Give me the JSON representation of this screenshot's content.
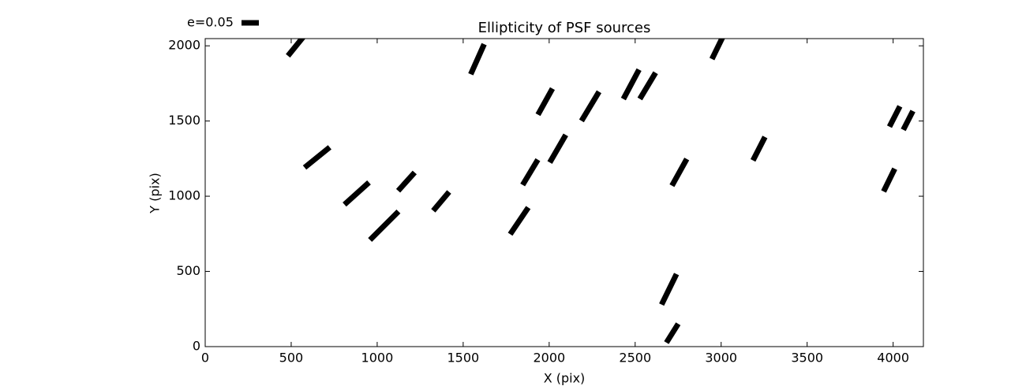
{
  "chart_data": {
    "type": "quiver",
    "title": "Ellipticity of PSF sources",
    "x_label": "X (pix)",
    "y_label": "Y (pix)",
    "xlim": [
      0,
      4176
    ],
    "ylim": [
      0,
      2048
    ],
    "xticks": [
      0,
      500,
      1000,
      1500,
      2000,
      2500,
      3000,
      3500,
      4000
    ],
    "yticks": [
      0,
      500,
      1000,
      1500,
      2000
    ],
    "legend": {
      "label": "e=0.05",
      "value": 0.05,
      "position": "upper left"
    },
    "whiskers": {
      "color": "#000000",
      "x": [
        532,
        1583,
        2982,
        651,
        881,
        1041,
        1170,
        1372,
        1977,
        1890,
        2050,
        1826,
        2239,
        2477,
        2573,
        2757,
        3220,
        4009,
        4087,
        3977,
        2697,
        2716
      ],
      "y": [
        2005,
        1911,
        1995,
        1258,
        1018,
        804,
        1097,
        966,
        1629,
        1159,
        1316,
        836,
        1598,
        1744,
        1734,
        1159,
        1316,
        1530,
        1504,
        1107,
        381,
        89
      ],
      "e": [
        0.08,
        0.095,
        0.08,
        0.093,
        0.095,
        0.116,
        0.071,
        0.071,
        0.086,
        0.085,
        0.092,
        0.093,
        0.098,
        0.096,
        0.088,
        0.088,
        0.076,
        0.066,
        0.061,
        0.073,
        0.098,
        0.064
      ],
      "angle": [
        51,
        66,
        64,
        39,
        42,
        45,
        48,
        50,
        61,
        59,
        60,
        56,
        59,
        62,
        59,
        61,
        63,
        63,
        63,
        64,
        64,
        58
      ]
    }
  }
}
